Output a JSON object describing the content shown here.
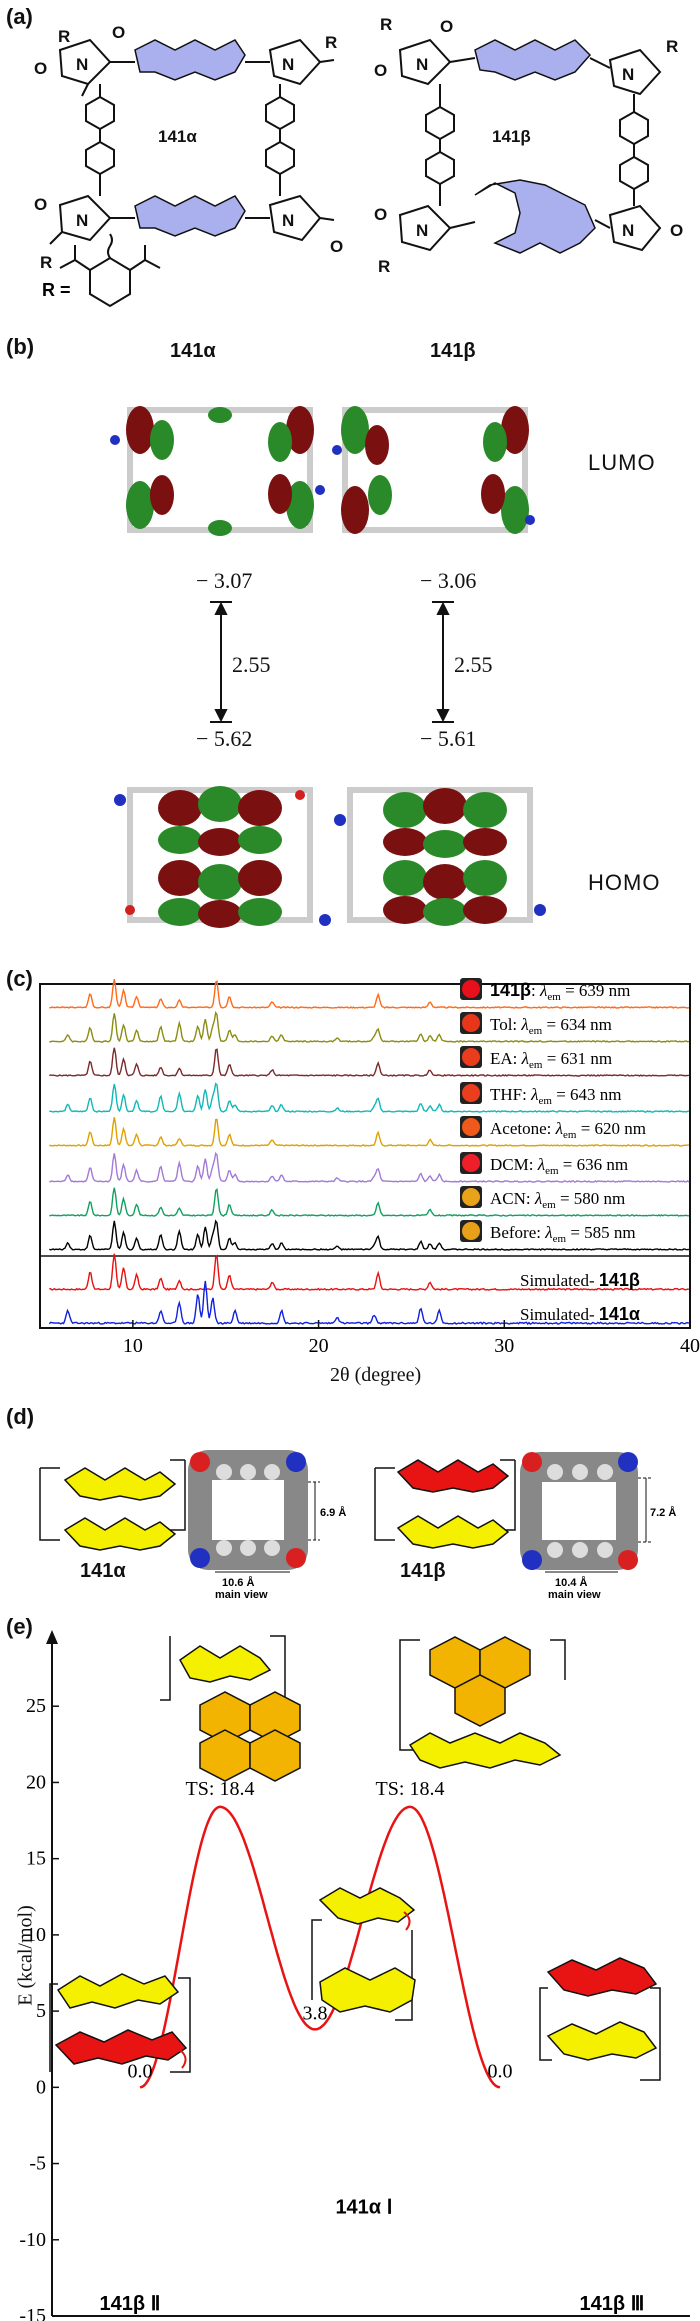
{
  "panel_a": {
    "label": "(a)",
    "left_compound": "141α",
    "right_compound": "141β",
    "R_text": "R =",
    "left_substituents": [
      "R",
      "R",
      "R"
    ],
    "right_substituents": [
      "R",
      "R",
      "R"
    ]
  },
  "panel_b": {
    "label": "(b)",
    "left_title": "141α",
    "right_title": "141β",
    "lumo_label": "LUMO",
    "homo_label": "HOMO",
    "left_lumo": "− 3.07",
    "left_gap": "2.55",
    "left_homo": "− 5.62",
    "right_lumo": "− 3.06",
    "right_gap": "2.55",
    "right_homo": "− 5.61"
  },
  "panel_c": {
    "label": "(c)",
    "xlabel": "2θ (degree)",
    "xticks": [
      "10",
      "20",
      "30",
      "40"
    ],
    "traces": [
      {
        "name": "141β",
        "lambda": "639 nm",
        "color": "#ff6a1a",
        "swatch": "#e8101a"
      },
      {
        "name": "Tol",
        "lambda": "634 nm",
        "color": "#8c8c12",
        "swatch": "#e8361a"
      },
      {
        "name": "EA",
        "lambda": "631 nm",
        "color": "#7a2a2a",
        "swatch": "#ea3d1e"
      },
      {
        "name": "THF",
        "lambda": "643 nm",
        "color": "#12b8b8",
        "swatch": "#ea3e1f"
      },
      {
        "name": "Acetone",
        "lambda": "620 nm",
        "color": "#e0a000",
        "swatch": "#ee5a1c"
      },
      {
        "name": "DCM",
        "lambda": "636 nm",
        "color": "#a27ad8",
        "swatch": "#ee1f2a"
      },
      {
        "name": "ACN",
        "lambda": "580 nm",
        "color": "#12a060",
        "swatch": "#e8a31a"
      },
      {
        "name": "Before",
        "lambda": "585 nm",
        "color": "#000000",
        "swatch": "#e8a01a"
      }
    ],
    "lambda_symbol": "λ",
    "lambda_sub": "em",
    "sim_beta": "Simulated- ",
    "sim_beta_bold": "141β",
    "sim_alpha": "Simulated- ",
    "sim_alpha_bold": "141α",
    "sim_beta_color": "#e81010",
    "sim_alpha_color": "#1020e0"
  },
  "panel_d": {
    "label": "(d)",
    "left_name": "141α",
    "right_name": "141β",
    "left_height": "6.9 Å",
    "left_width": "10.6 Å",
    "right_height": "7.2 Å",
    "right_width": "10.4 Å",
    "view_label": "main view"
  },
  "panel_e": {
    "label": "(e)",
    "ylabel": "E (kcal/mol)",
    "yticks": [
      "25",
      "20",
      "15",
      "10",
      "5",
      "0",
      "-5",
      "-10",
      "-15"
    ],
    "chart_data": {
      "type": "line",
      "title": "",
      "xlabel": "",
      "ylabel": "E (kcal/mol)",
      "ylim": [
        -15,
        30
      ],
      "points": [
        {
          "label": "141β Ⅱ",
          "value": 0.0
        },
        {
          "label": "TS: 18.4",
          "value": 18.4
        },
        {
          "label": "141α Ⅰ",
          "value": 3.8
        },
        {
          "label": "TS: 18.4",
          "value": 18.4
        },
        {
          "label": "141β Ⅲ",
          "value": 0.0
        }
      ]
    },
    "value_labels": [
      "0.0",
      "TS: 18.4",
      "3.8",
      "TS: 18.4",
      "0.0"
    ],
    "state_names": [
      "141β Ⅱ",
      "141α Ⅰ",
      "141β Ⅲ"
    ],
    "yellow": "#f5f000",
    "orange": "#f2b400",
    "red": "#e81414"
  }
}
